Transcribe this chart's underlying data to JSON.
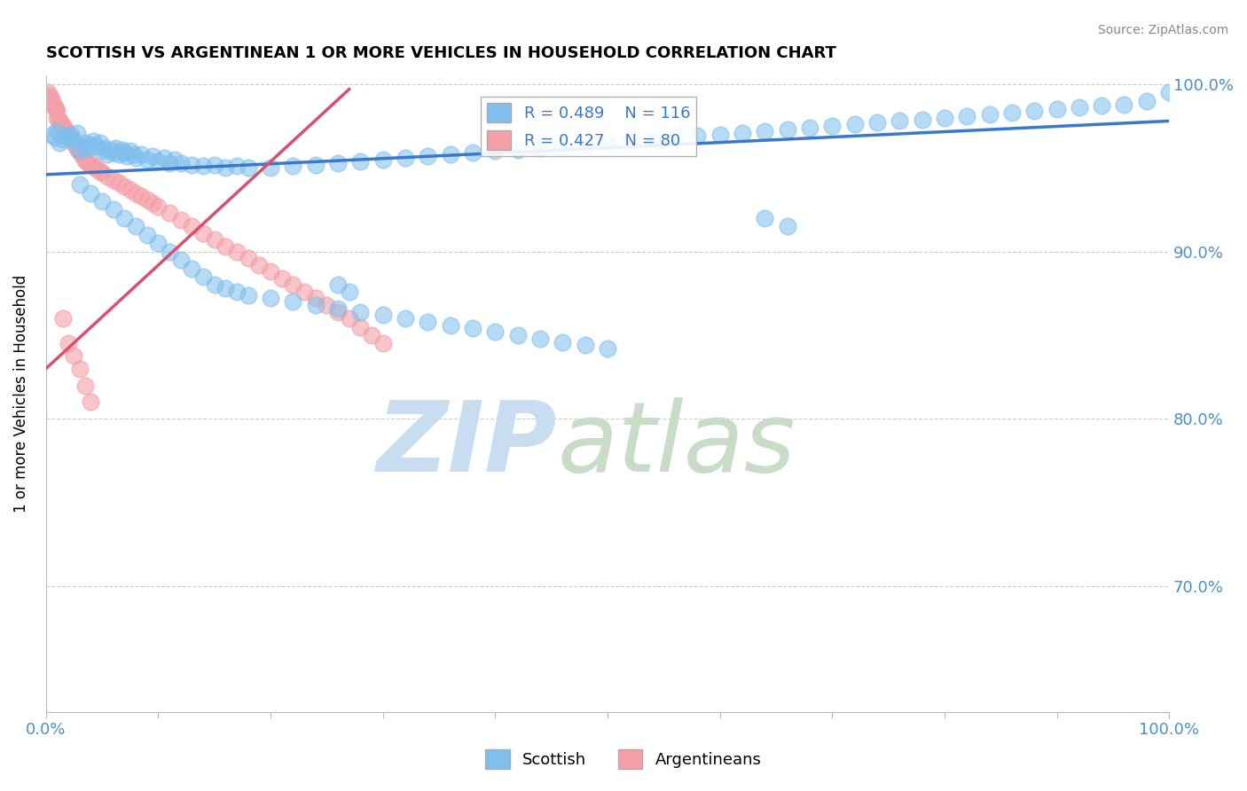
{
  "title": "SCOTTISH VS ARGENTINEAN 1 OR MORE VEHICLES IN HOUSEHOLD CORRELATION CHART",
  "source": "Source: ZipAtlas.com",
  "ylabel": "1 or more Vehicles in Household",
  "xlim": [
    0.0,
    1.0
  ],
  "ylim": [
    0.625,
    1.005
  ],
  "ytick_positions": [
    0.7,
    0.8,
    0.9,
    1.0
  ],
  "ytick_labels": [
    "70.0%",
    "80.0%",
    "90.0%",
    "100.0%"
  ],
  "legend_R_blue": "R = 0.489",
  "legend_N_blue": "N = 116",
  "legend_R_pink": "R = 0.427",
  "legend_N_pink": "N = 80",
  "blue_scatter_color": "#7fbfed",
  "pink_scatter_color": "#f4a0a8",
  "blue_line_color": "#3a78c9",
  "pink_line_color": "#d94f6e",
  "tick_color": "#4a90c9",
  "grid_color": "#cccccc",
  "watermark_zip_color": "#c8ddf0",
  "watermark_atlas_color": "#c8dcc8",
  "scatter_blue_x": [
    0.005,
    0.008,
    0.01,
    0.012,
    0.015,
    0.018,
    0.02,
    0.022,
    0.025,
    0.028,
    0.03,
    0.032,
    0.035,
    0.038,
    0.04,
    0.042,
    0.045,
    0.048,
    0.05,
    0.052,
    0.055,
    0.058,
    0.06,
    0.062,
    0.065,
    0.068,
    0.07,
    0.072,
    0.075,
    0.078,
    0.08,
    0.085,
    0.09,
    0.095,
    0.1,
    0.105,
    0.11,
    0.115,
    0.12,
    0.13,
    0.14,
    0.15,
    0.16,
    0.17,
    0.18,
    0.2,
    0.22,
    0.24,
    0.26,
    0.28,
    0.3,
    0.32,
    0.34,
    0.36,
    0.38,
    0.4,
    0.42,
    0.44,
    0.46,
    0.48,
    0.5,
    0.52,
    0.54,
    0.56,
    0.58,
    0.6,
    0.62,
    0.64,
    0.66,
    0.68,
    0.7,
    0.72,
    0.74,
    0.76,
    0.78,
    0.8,
    0.82,
    0.84,
    0.86,
    0.88,
    0.9,
    0.92,
    0.94,
    0.96,
    0.98,
    1.0,
    0.03,
    0.04,
    0.05,
    0.06,
    0.07,
    0.08,
    0.09,
    0.1,
    0.11,
    0.12,
    0.13,
    0.14,
    0.15,
    0.16,
    0.17,
    0.18,
    0.2,
    0.22,
    0.24,
    0.26,
    0.28,
    0.3,
    0.32,
    0.34,
    0.36,
    0.38,
    0.4,
    0.42,
    0.44,
    0.46,
    0.48,
    0.5,
    0.26,
    0.27,
    0.64,
    0.66
  ],
  "scatter_blue_y": [
    0.97,
    0.968,
    0.972,
    0.965,
    0.967,
    0.969,
    0.968,
    0.97,
    0.966,
    0.971,
    0.96,
    0.963,
    0.965,
    0.962,
    0.964,
    0.966,
    0.963,
    0.965,
    0.96,
    0.962,
    0.958,
    0.961,
    0.959,
    0.962,
    0.958,
    0.961,
    0.959,
    0.957,
    0.96,
    0.958,
    0.956,
    0.958,
    0.955,
    0.957,
    0.954,
    0.956,
    0.953,
    0.955,
    0.953,
    0.952,
    0.951,
    0.952,
    0.95,
    0.951,
    0.95,
    0.95,
    0.951,
    0.952,
    0.953,
    0.954,
    0.955,
    0.956,
    0.957,
    0.958,
    0.959,
    0.96,
    0.961,
    0.962,
    0.963,
    0.964,
    0.965,
    0.966,
    0.967,
    0.968,
    0.969,
    0.97,
    0.971,
    0.972,
    0.973,
    0.974,
    0.975,
    0.976,
    0.977,
    0.978,
    0.979,
    0.98,
    0.981,
    0.982,
    0.983,
    0.984,
    0.985,
    0.986,
    0.987,
    0.988,
    0.99,
    0.995,
    0.94,
    0.935,
    0.93,
    0.925,
    0.92,
    0.915,
    0.91,
    0.905,
    0.9,
    0.895,
    0.89,
    0.885,
    0.88,
    0.878,
    0.876,
    0.874,
    0.872,
    0.87,
    0.868,
    0.866,
    0.864,
    0.862,
    0.86,
    0.858,
    0.856,
    0.854,
    0.852,
    0.85,
    0.848,
    0.846,
    0.844,
    0.842,
    0.88,
    0.876,
    0.92,
    0.915
  ],
  "scatter_pink_x": [
    0.002,
    0.003,
    0.004,
    0.005,
    0.005,
    0.006,
    0.007,
    0.008,
    0.009,
    0.01,
    0.01,
    0.011,
    0.012,
    0.013,
    0.014,
    0.015,
    0.016,
    0.017,
    0.018,
    0.019,
    0.02,
    0.021,
    0.022,
    0.023,
    0.024,
    0.025,
    0.026,
    0.027,
    0.028,
    0.029,
    0.03,
    0.031,
    0.032,
    0.033,
    0.034,
    0.035,
    0.036,
    0.038,
    0.04,
    0.042,
    0.044,
    0.046,
    0.048,
    0.05,
    0.055,
    0.06,
    0.065,
    0.07,
    0.075,
    0.08,
    0.085,
    0.09,
    0.095,
    0.1,
    0.11,
    0.12,
    0.13,
    0.14,
    0.15,
    0.16,
    0.17,
    0.18,
    0.19,
    0.2,
    0.21,
    0.22,
    0.23,
    0.24,
    0.25,
    0.26,
    0.27,
    0.28,
    0.29,
    0.3,
    0.015,
    0.02,
    0.025,
    0.03,
    0.035,
    0.04
  ],
  "scatter_pink_y": [
    0.995,
    0.993,
    0.992,
    0.991,
    0.988,
    0.989,
    0.987,
    0.986,
    0.985,
    0.984,
    0.98,
    0.979,
    0.978,
    0.977,
    0.976,
    0.975,
    0.974,
    0.973,
    0.972,
    0.971,
    0.97,
    0.969,
    0.968,
    0.967,
    0.966,
    0.965,
    0.964,
    0.963,
    0.962,
    0.961,
    0.96,
    0.959,
    0.958,
    0.957,
    0.956,
    0.955,
    0.954,
    0.953,
    0.952,
    0.951,
    0.95,
    0.949,
    0.948,
    0.947,
    0.945,
    0.943,
    0.941,
    0.939,
    0.937,
    0.935,
    0.933,
    0.931,
    0.929,
    0.927,
    0.923,
    0.919,
    0.915,
    0.911,
    0.907,
    0.903,
    0.9,
    0.896,
    0.892,
    0.888,
    0.884,
    0.88,
    0.876,
    0.872,
    0.868,
    0.864,
    0.86,
    0.855,
    0.85,
    0.845,
    0.86,
    0.845,
    0.838,
    0.83,
    0.82,
    0.81
  ],
  "trend_blue_x0": 0.0,
  "trend_blue_y0": 0.946,
  "trend_blue_x1": 1.0,
  "trend_blue_y1": 0.978,
  "trend_pink_x0": 0.0,
  "trend_pink_y0": 0.83,
  "trend_pink_x1": 0.27,
  "trend_pink_y1": 0.997
}
